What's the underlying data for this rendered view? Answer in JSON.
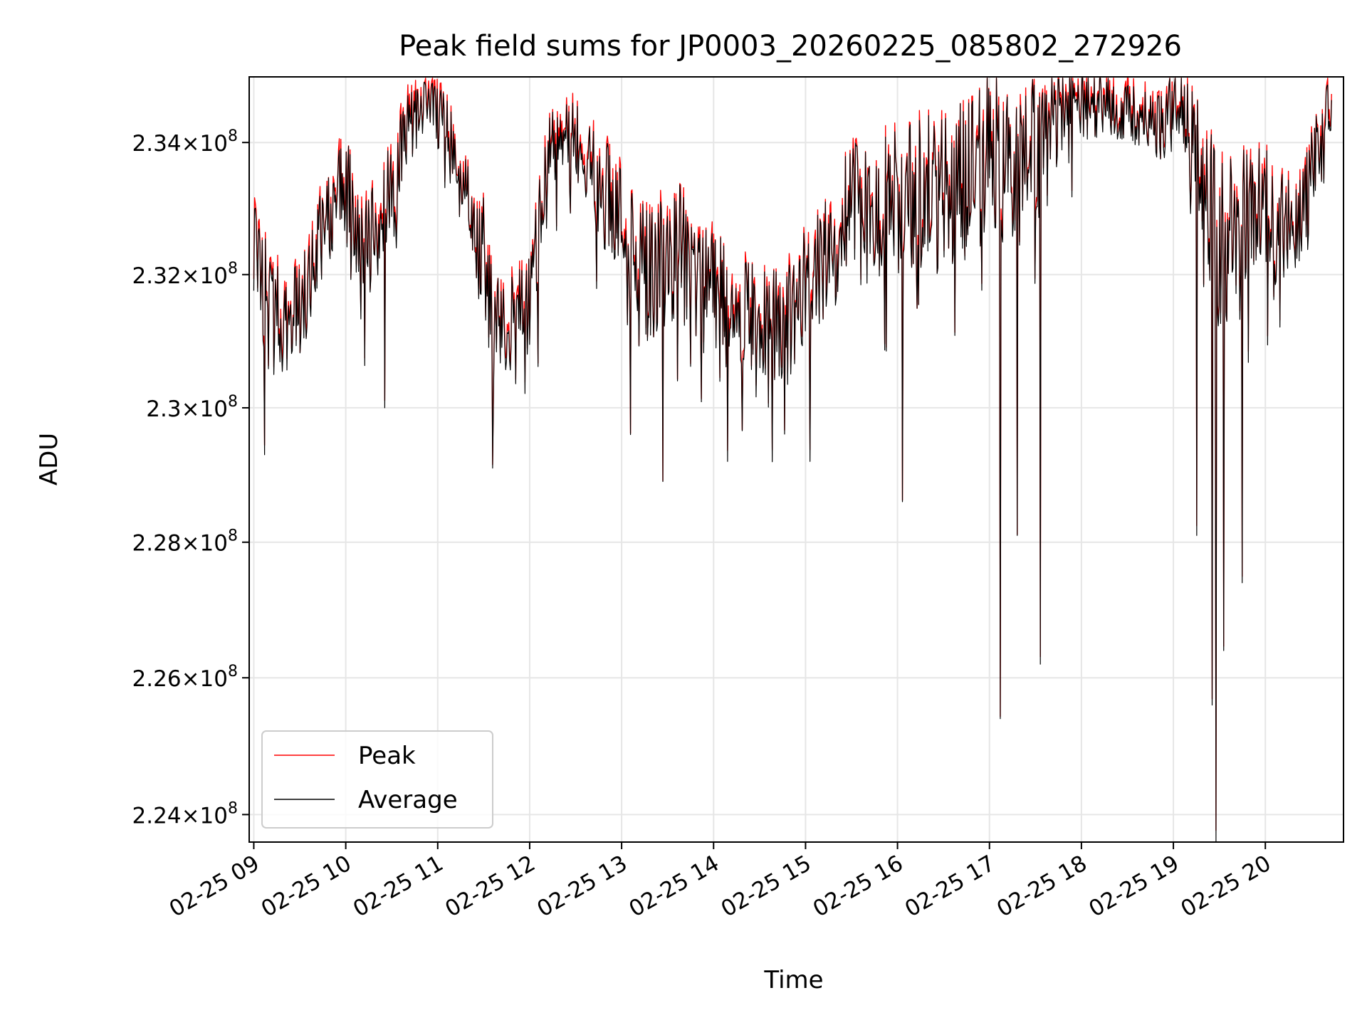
{
  "chart_data": {
    "type": "line",
    "title": "Peak field sums for JP0003_20260225_085802_272926",
    "xlabel": "Time",
    "ylabel": "ADU",
    "x_unit": "hours since 02-25 09:00",
    "xlim": [
      -0.05,
      11.85
    ],
    "ylim": [
      223.6,
      235.0
    ],
    "y_unit": "x 10^6 ADU",
    "yscale": "log",
    "grid": true,
    "legend_position": "lower-left",
    "x_ticks": [
      {
        "value": 0,
        "label": "02-25 09"
      },
      {
        "value": 1,
        "label": "02-25 10"
      },
      {
        "value": 2,
        "label": "02-25 11"
      },
      {
        "value": 3,
        "label": "02-25 12"
      },
      {
        "value": 4,
        "label": "02-25 13"
      },
      {
        "value": 5,
        "label": "02-25 14"
      },
      {
        "value": 6,
        "label": "02-25 15"
      },
      {
        "value": 7,
        "label": "02-25 16"
      },
      {
        "value": 8,
        "label": "02-25 17"
      },
      {
        "value": 9,
        "label": "02-25 18"
      },
      {
        "value": 10,
        "label": "02-25 19"
      },
      {
        "value": 11,
        "label": "02-25 20"
      }
    ],
    "y_ticks": [
      {
        "value": 224,
        "mantissa": "2.24",
        "exponent": "8"
      },
      {
        "value": 226,
        "mantissa": "2.26",
        "exponent": "8"
      },
      {
        "value": 228,
        "mantissa": "2.28",
        "exponent": "8"
      },
      {
        "value": 230,
        "mantissa": "2.3",
        "exponent": "8"
      },
      {
        "value": 232,
        "mantissa": "2.32",
        "exponent": "8"
      },
      {
        "value": 234,
        "mantissa": "2.34",
        "exponent": "8"
      }
    ],
    "times_symbol": "×",
    "tick_base": "10",
    "series": [
      {
        "name": "Peak",
        "color": "#ff0000"
      },
      {
        "name": "Average",
        "color": "#000000"
      }
    ],
    "baseline_profile": {
      "x": [
        0,
        0.1,
        0.3,
        0.5,
        0.7,
        0.85,
        1.0,
        1.2,
        1.5,
        1.7,
        1.9,
        2.1,
        2.3,
        2.5,
        2.6,
        2.8,
        3.0,
        3.2,
        3.4,
        3.6,
        3.9,
        4.1,
        4.3,
        4.6,
        4.9,
        5.2,
        5.5,
        5.8,
        6.0,
        6.3,
        6.6,
        6.9,
        7.2,
        7.5,
        7.8,
        8.0,
        8.3,
        8.6,
        9.0,
        9.3,
        9.6,
        9.9,
        10.1,
        10.3,
        10.5,
        10.7,
        10.9,
        11.1,
        11.3,
        11.5,
        11.7
      ],
      "y": [
        232.8,
        231.6,
        231.2,
        231.5,
        232.4,
        233.0,
        233.4,
        232.3,
        233.2,
        234.3,
        234.5,
        234.2,
        233.0,
        232.3,
        231.3,
        231.2,
        231.6,
        233.6,
        234.3,
        233.8,
        233.0,
        232.5,
        232.0,
        232.4,
        231.8,
        231.4,
        231.4,
        231.2,
        231.8,
        232.6,
        233.0,
        233.1,
        233.2,
        233.3,
        233.5,
        233.8,
        233.5,
        234.1,
        234.6,
        234.6,
        234.3,
        234.3,
        234.6,
        233.4,
        232.4,
        232.6,
        233.1,
        233.0,
        232.5,
        233.4,
        234.6
      ],
      "noise_amplitude": [
        1.2,
        1.2,
        0.8,
        0.7,
        0.7,
        0.8,
        0.7,
        0.8,
        0.8,
        0.6,
        0.5,
        0.5,
        0.8,
        0.9,
        0.8,
        0.8,
        0.8,
        0.8,
        0.6,
        0.7,
        0.9,
        1.0,
        1.1,
        1.1,
        1.0,
        1.0,
        0.9,
        0.9,
        0.9,
        1.1,
        1.2,
        1.2,
        1.2,
        1.3,
        1.3,
        1.3,
        1.3,
        1.1,
        0.6,
        0.5,
        0.6,
        0.6,
        0.6,
        1.3,
        1.3,
        1.2,
        1.0,
        1.0,
        1.0,
        1.0,
        0.5
      ]
    },
    "notable_dips": [
      {
        "x": 0.12,
        "y": 229.3
      },
      {
        "x": 1.42,
        "y": 230.0
      },
      {
        "x": 2.6,
        "y": 229.1
      },
      {
        "x": 4.1,
        "y": 229.6
      },
      {
        "x": 4.45,
        "y": 228.9
      },
      {
        "x": 5.15,
        "y": 229.2
      },
      {
        "x": 6.05,
        "y": 229.2
      },
      {
        "x": 7.05,
        "y": 228.6
      },
      {
        "x": 8.12,
        "y": 225.4
      },
      {
        "x": 8.3,
        "y": 228.1
      },
      {
        "x": 8.55,
        "y": 226.2
      },
      {
        "x": 10.25,
        "y": 228.1
      },
      {
        "x": 10.42,
        "y": 225.6
      },
      {
        "x": 10.46,
        "y": 223.6
      },
      {
        "x": 10.55,
        "y": 226.4
      },
      {
        "x": 10.75,
        "y": 227.4
      }
    ]
  }
}
